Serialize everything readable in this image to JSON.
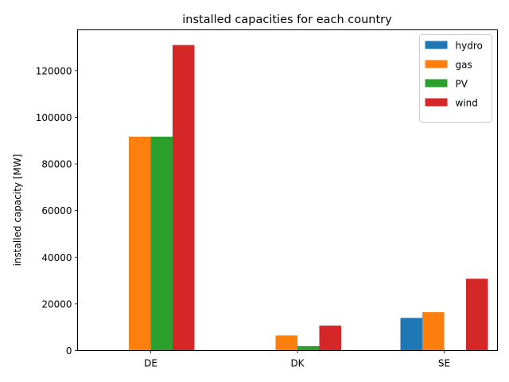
{
  "chart_data": {
    "type": "bar",
    "title": "installed capacities for each country",
    "xlabel": "",
    "ylabel": "installed capacity [MW]",
    "categories": [
      "DE",
      "DK",
      "SE"
    ],
    "series": [
      {
        "name": "hydro",
        "color": "#1f77b4",
        "values": [
          0,
          0,
          14000
        ]
      },
      {
        "name": "gas",
        "color": "#ff7f0e",
        "values": [
          91700,
          6500,
          16500
        ]
      },
      {
        "name": "PV",
        "color": "#2ca02c",
        "values": [
          91700,
          1900,
          0
        ]
      },
      {
        "name": "wind",
        "color": "#d62728",
        "values": [
          131000,
          10700,
          30800
        ]
      }
    ],
    "ylim": [
      0,
      137500
    ],
    "yticks": [
      0,
      20000,
      40000,
      60000,
      80000,
      100000,
      120000
    ],
    "grid": false,
    "legend_position": "top-right"
  }
}
